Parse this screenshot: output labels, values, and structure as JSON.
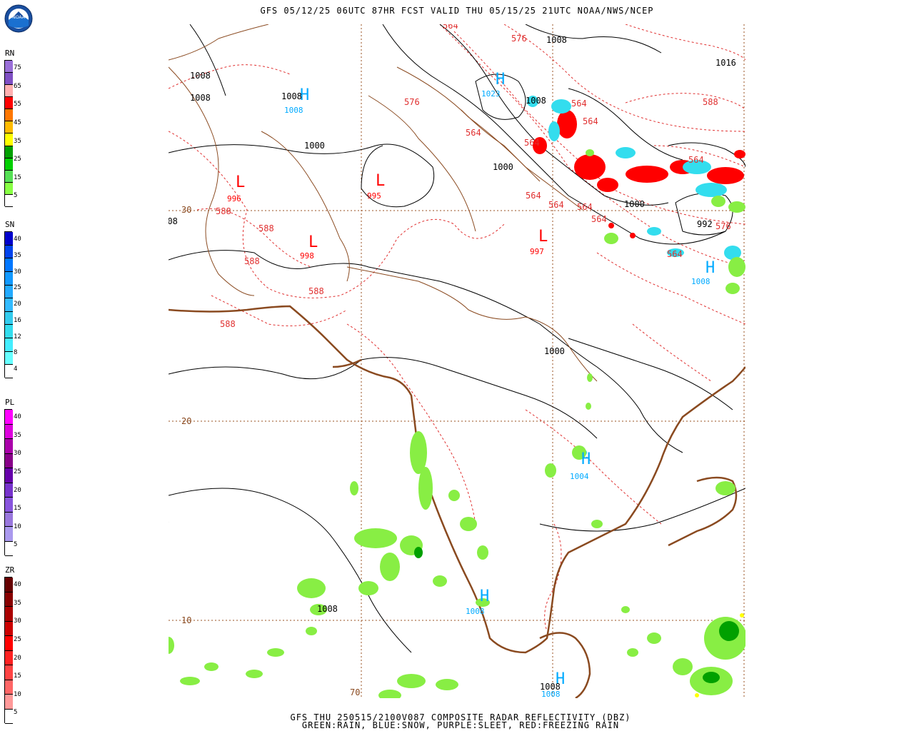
{
  "header": {
    "title": "GFS 05/12/25 06UTC 87HR FCST VALID THU 05/15/25 21UTC NOAA/NWS/NCEP"
  },
  "footer": {
    "line1": "GFS THU 250515/2100V087 COMPOSITE RADAR REFLECTIVITY (DBZ)",
    "line2": "GREEN:RAIN, BLUE:SNOW, PURPLE:SLEET, RED:FREEZING RAIN"
  },
  "logo": {
    "icon": "noaa-logo-icon",
    "text": "NOAA"
  },
  "legends": [
    {
      "title": "RN",
      "labels": [
        "75",
        "65",
        "55",
        "45",
        "35",
        "25",
        "15",
        "5"
      ],
      "colors": [
        "#9a6fd8",
        "#7f4fc4",
        "#ffb0b0",
        "#ff0000",
        "#ff7700",
        "#ffbb00",
        "#ffff00",
        "#00a000",
        "#00d000",
        "#55e055",
        "#88ff44",
        "#ffffff"
      ]
    },
    {
      "title": "SN",
      "labels": [
        "40",
        "35",
        "30",
        "25",
        "20",
        "16",
        "12",
        "8",
        "4"
      ],
      "colors": [
        "#0000cc",
        "#0044ee",
        "#0077ff",
        "#1199ff",
        "#22aaff",
        "#33bbff",
        "#33ccee",
        "#33ddee",
        "#44eeff",
        "#66ffff",
        "#ffffff"
      ]
    },
    {
      "title": "PL",
      "labels": [
        "40",
        "35",
        "30",
        "25",
        "20",
        "15",
        "10",
        "5"
      ],
      "colors": [
        "#ff00ff",
        "#dd00dd",
        "#aa00aa",
        "#880088",
        "#6600aa",
        "#7733cc",
        "#8855dd",
        "#9977dd",
        "#aa99ee",
        "#ffffff"
      ]
    },
    {
      "title": "ZR",
      "labels": [
        "40",
        "35",
        "30",
        "25",
        "20",
        "15",
        "10",
        "5"
      ],
      "colors": [
        "#660000",
        "#880000",
        "#aa0000",
        "#cc0000",
        "#ff0000",
        "#ff2222",
        "#ff4444",
        "#ff6666",
        "#ff9999",
        "#ffffff"
      ]
    }
  ],
  "map": {
    "grid_labels": {
      "lat30": "30",
      "lat20": "20",
      "lat10": "10",
      "lon70": "70"
    },
    "pressure_centers": [
      {
        "type": "L",
        "value": "996",
        "color": "#ff0000"
      },
      {
        "type": "L",
        "value": "995",
        "color": "#ff0000"
      },
      {
        "type": "L",
        "value": "998",
        "color": "#ff0000"
      },
      {
        "type": "L",
        "value": "997",
        "color": "#ff0000"
      },
      {
        "type": "H",
        "value": "1023",
        "color": "#00aaff"
      },
      {
        "type": "H",
        "value": "1008",
        "color": "#00aaff"
      },
      {
        "type": "H",
        "value": "1008",
        "color": "#00aaff"
      },
      {
        "type": "H",
        "value": "1004",
        "color": "#00aaff"
      },
      {
        "type": "H",
        "value": "1008",
        "color": "#00aaff"
      },
      {
        "type": "H",
        "value": "1008",
        "color": "#00aaff"
      }
    ],
    "isobar_labels": [
      "1008",
      "1008",
      "1008",
      "1000",
      "1000",
      "1008",
      "1016",
      "1008",
      "1000",
      "1008",
      "1008",
      "1008",
      "1000",
      "1008",
      "992"
    ],
    "thickness_labels": [
      "564",
      "576",
      "576",
      "564",
      "564",
      "564",
      "564",
      "564",
      "564",
      "564",
      "564",
      "564",
      "576",
      "588",
      "588",
      "588",
      "588",
      "588",
      "588",
      "564"
    ]
  }
}
